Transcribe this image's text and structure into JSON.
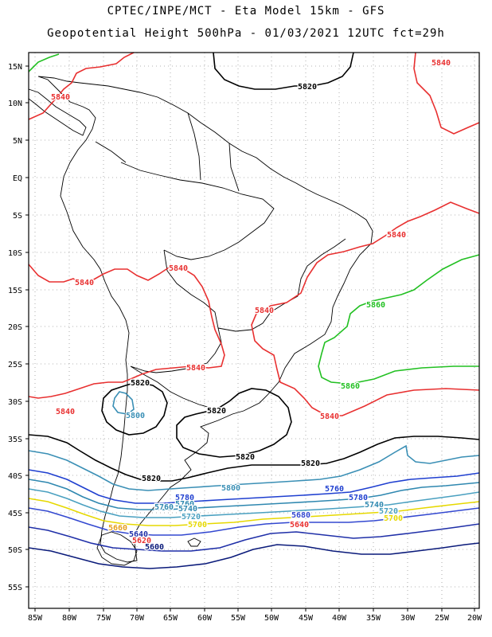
{
  "header": {
    "title_line1": "CPTEC/INPE/MCT -  Eta Model 15km - GFS",
    "title_line2": "Geopotential Height 500hPa - 01/03/2021 12UTC fct=29h"
  },
  "map": {
    "lat_labels": [
      "15N",
      "10N",
      "5N",
      "EQ",
      "5S",
      "10S",
      "15S",
      "20S",
      "25S",
      "30S",
      "35S",
      "40S",
      "45S",
      "50S",
      "55S"
    ],
    "lon_labels": [
      "85W",
      "80W",
      "75W",
      "70W",
      "65W",
      "60W",
      "55W",
      "50W",
      "45W",
      "40W",
      "35W",
      "30W",
      "25W",
      "20W"
    ],
    "contour_colors": {
      "5600": "#0a1a7a",
      "5640": "#1f2fa8",
      "5680": "#3348d0",
      "5700": "#e6d800",
      "5720": "#4aa0c0",
      "5740": "#2f88b0",
      "5760": "#1f3fd0",
      "5800": "#3a8fb5",
      "5820": "#000000",
      "5840": "#e83030",
      "5860": "#22c022"
    },
    "contour_labels": [
      {
        "id": "l1",
        "text": "5820",
        "color": "#000000"
      },
      {
        "id": "l2",
        "text": "5840",
        "color": "#e83030"
      },
      {
        "id": "l3",
        "text": "5840",
        "color": "#e83030"
      },
      {
        "id": "l4",
        "text": "5840",
        "color": "#e83030"
      },
      {
        "id": "l5",
        "text": "5840",
        "color": "#e83030"
      },
      {
        "id": "l6",
        "text": "5840",
        "color": "#e83030"
      },
      {
        "id": "l7",
        "text": "5840",
        "color": "#e83030"
      },
      {
        "id": "l8",
        "text": "5840",
        "color": "#e83030"
      },
      {
        "id": "l9",
        "text": "5840",
        "color": "#e83030"
      },
      {
        "id": "l10",
        "text": "5840",
        "color": "#e83030"
      },
      {
        "id": "l11",
        "text": "5860",
        "color": "#22c022"
      },
      {
        "id": "l12",
        "text": "5860",
        "color": "#22c022"
      },
      {
        "id": "l13",
        "text": "5820",
        "color": "#000000"
      },
      {
        "id": "l14",
        "text": "5800",
        "color": "#3a8fb5"
      },
      {
        "id": "l15",
        "text": "5820",
        "color": "#000000"
      },
      {
        "id": "l16",
        "text": "5820",
        "color": "#000000"
      },
      {
        "id": "l17",
        "text": "5820",
        "color": "#000000"
      },
      {
        "id": "l18",
        "text": "5820",
        "color": "#000000"
      },
      {
        "id": "l19",
        "text": "5800",
        "color": "#3a8fb5"
      },
      {
        "id": "l20",
        "text": "5780",
        "color": "#1f3fd0"
      },
      {
        "id": "l21",
        "text": "5760",
        "color": "#1f3fd0"
      },
      {
        "id": "l22",
        "text": "5760",
        "color": "#2f88b0"
      },
      {
        "id": "l23",
        "text": "5780",
        "color": "#1f3fd0"
      },
      {
        "id": "l24",
        "text": "5760",
        "color": "#2f88b0"
      },
      {
        "id": "l25",
        "text": "5740",
        "color": "#2f88b0"
      },
      {
        "id": "l26",
        "text": "5740",
        "color": "#2f88b0"
      },
      {
        "id": "l27",
        "text": "5720",
        "color": "#4aa0c0"
      },
      {
        "id": "l28",
        "text": "5720",
        "color": "#4aa0c0"
      },
      {
        "id": "l29",
        "text": "5700",
        "color": "#e6d800"
      },
      {
        "id": "l30",
        "text": "5700",
        "color": "#e6d800"
      },
      {
        "id": "l31",
        "text": "5680",
        "color": "#3348d0"
      },
      {
        "id": "l32",
        "text": "5640",
        "color": "#e83030"
      },
      {
        "id": "l33",
        "text": "5660",
        "color": "#e6a020"
      },
      {
        "id": "l34",
        "text": "5640",
        "color": "#1f2fa8"
      },
      {
        "id": "l35",
        "text": "5620",
        "color": "#e83030"
      },
      {
        "id": "l36",
        "text": "5600",
        "color": "#0a1a7a"
      }
    ]
  }
}
